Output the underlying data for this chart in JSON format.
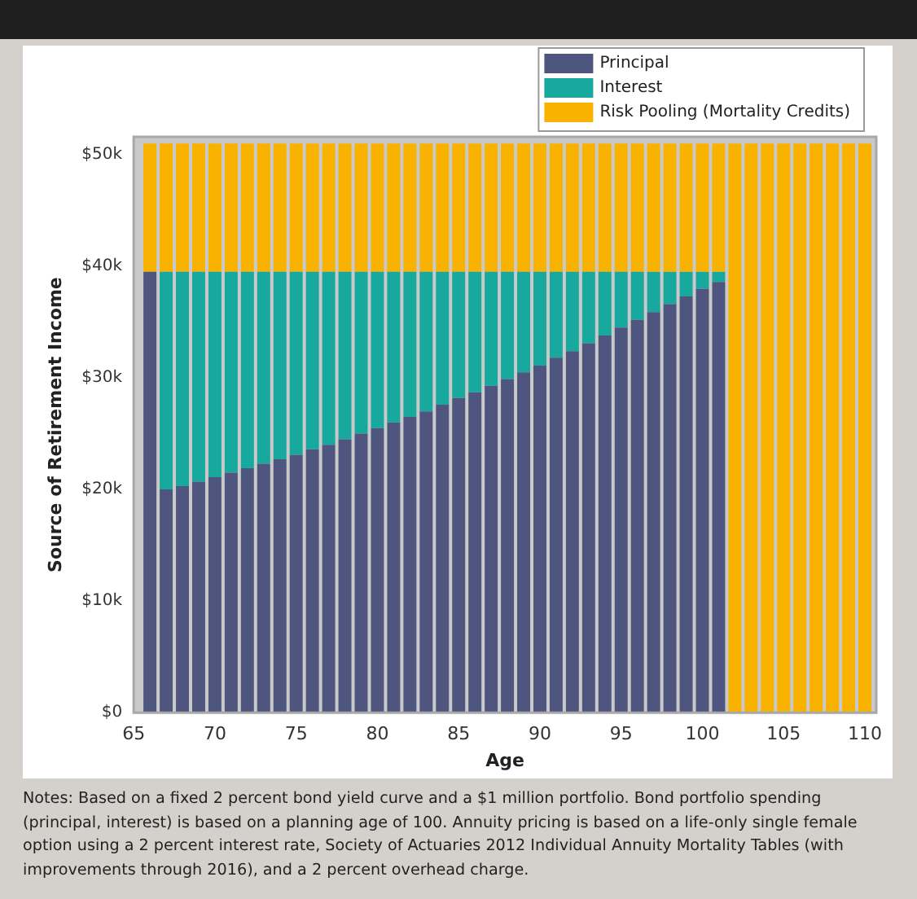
{
  "chart_data": {
    "type": "bar",
    "stacked": true,
    "xlabel": "Age",
    "ylabel": "Source of Retirement Income",
    "x": [
      66,
      67,
      68,
      69,
      70,
      71,
      72,
      73,
      74,
      75,
      76,
      77,
      78,
      79,
      80,
      81,
      82,
      83,
      84,
      85,
      86,
      87,
      88,
      89,
      90,
      91,
      92,
      93,
      94,
      95,
      96,
      97,
      98,
      99,
      100,
      101,
      102,
      103,
      104,
      105,
      106,
      107,
      108,
      109,
      110
    ],
    "xlim": [
      65,
      110.7
    ],
    "xticks": [
      65,
      70,
      75,
      80,
      85,
      90,
      95,
      100,
      105,
      110
    ],
    "ylim": [
      0,
      51.6
    ],
    "yticks": [
      {
        "value": 0,
        "label": "$0"
      },
      {
        "value": 10,
        "label": "$10k"
      },
      {
        "value": 20,
        "label": "$20k"
      },
      {
        "value": 30,
        "label": "$30k"
      },
      {
        "value": 40,
        "label": "$40k"
      },
      {
        "value": 50,
        "label": "$50k"
      }
    ],
    "legend": "top right",
    "series": [
      {
        "name": "Principal",
        "color": "#4e5680",
        "values": [
          39.5,
          20.0,
          20.3,
          20.7,
          21.1,
          21.5,
          21.9,
          22.3,
          22.7,
          23.1,
          23.6,
          24.0,
          24.5,
          25.0,
          25.5,
          26.0,
          26.5,
          27.0,
          27.6,
          28.2,
          28.7,
          29.3,
          29.9,
          30.5,
          31.1,
          31.8,
          32.4,
          33.1,
          33.8,
          34.5,
          35.2,
          35.9,
          36.6,
          37.3,
          38.0,
          38.6,
          null,
          null,
          null,
          null,
          null,
          null,
          null,
          null,
          null
        ]
      },
      {
        "name": "Interest",
        "color": "#17a89e",
        "values": [
          null,
          19.5,
          19.2,
          18.8,
          18.4,
          18.0,
          17.6,
          17.2,
          16.8,
          16.4,
          15.9,
          15.5,
          15.0,
          14.5,
          14.0,
          13.5,
          13.0,
          12.5,
          11.9,
          11.3,
          10.8,
          10.2,
          9.6,
          9.0,
          8.4,
          7.7,
          7.1,
          6.4,
          5.7,
          5.0,
          4.3,
          3.6,
          2.9,
          2.2,
          1.5,
          0.9,
          null,
          null,
          null,
          null,
          null,
          null,
          null,
          null,
          null
        ]
      },
      {
        "name": "Risk Pooling (Mortality Credits)",
        "color": "#f9b200",
        "values": [
          11.5,
          11.5,
          11.5,
          11.5,
          11.5,
          11.5,
          11.5,
          11.5,
          11.5,
          11.5,
          11.5,
          11.5,
          11.5,
          11.5,
          11.5,
          11.5,
          11.5,
          11.5,
          11.5,
          11.5,
          11.5,
          11.5,
          11.5,
          11.5,
          11.5,
          11.5,
          11.5,
          11.5,
          11.5,
          11.5,
          11.5,
          11.5,
          11.5,
          11.5,
          11.5,
          11.5,
          51.0,
          51.0,
          51.0,
          51.0,
          51.0,
          51.0,
          51.0,
          51.0,
          51.0
        ]
      }
    ],
    "annotations": [
      "Notes: Based on a fixed 2 percent bond yield curve and a $1 million portfolio. Bond portfolio spending (principal, interest) is based on a planning age of 100. Annuity pricing is based on a life-only single female option using a 2 percent interest rate, Society of Actuaries 2012 Individual Annuity Mortality Tables (with improvements through 2016), and a 2 percent overhead charge."
    ]
  }
}
